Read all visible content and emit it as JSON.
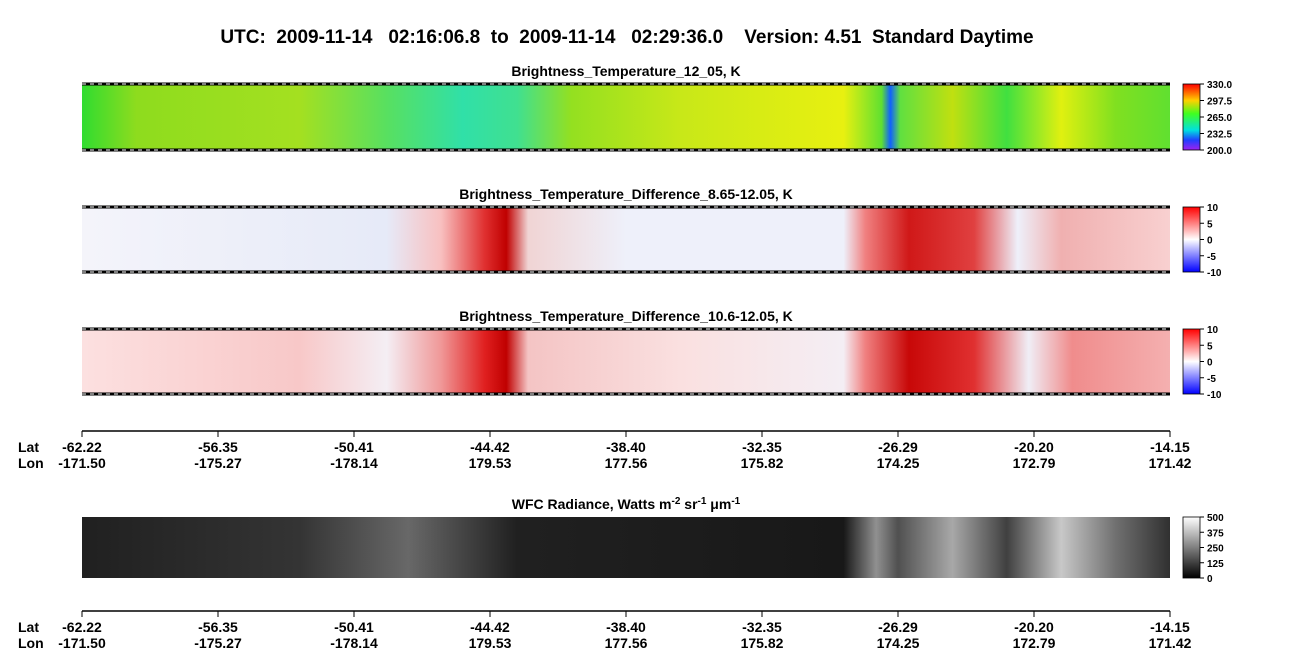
{
  "title": "UTC:  2009-11-14   02:16:06.8  to  2009-11-14   02:29:36.0    Version: 4.51  Standard Daytime",
  "panels": [
    {
      "title": [
        "Brightness_Temperature_12_05, K"
      ],
      "colorbar_ticks": [
        "330.0",
        "297.5",
        "265.0",
        "232.5",
        "200.0"
      ]
    },
    {
      "title": [
        "Brightness_Temperature_Difference_8.65-12.05, K"
      ],
      "colorbar_ticks": [
        "10",
        "5",
        "0",
        "-5",
        "-10"
      ]
    },
    {
      "title": [
        "Brightness_Temperature_Difference_10.6-12.05, K"
      ],
      "colorbar_ticks": [
        "10",
        "5",
        "0",
        "-5",
        "-10"
      ]
    },
    {
      "title": [
        "WFC Radiance, Watts m",
        "-2",
        " sr",
        "-1",
        " μm",
        "-1"
      ],
      "colorbar_ticks": [
        "500",
        "375",
        "250",
        "125",
        "0"
      ]
    }
  ],
  "axes": [
    {
      "lat_label": "Lat",
      "lon_label": "Lon",
      "lat": [
        "-62.22",
        "-56.35",
        "-50.41",
        "-44.42",
        "-38.40",
        "-32.35",
        "-26.29",
        "-20.20",
        "-14.15"
      ],
      "lon": [
        "-171.50",
        "-175.27",
        "-178.14",
        "179.53",
        "177.56",
        "175.82",
        "174.25",
        "172.79",
        "171.42"
      ]
    },
    {
      "lat_label": "Lat",
      "lon_label": "Lon",
      "lat": [
        "-62.22",
        "-56.35",
        "-50.41",
        "-44.42",
        "-38.40",
        "-32.35",
        "-26.29",
        "-20.20",
        "-14.15"
      ],
      "lon": [
        "-171.50",
        "-175.27",
        "-178.14",
        "179.53",
        "177.56",
        "175.82",
        "174.25",
        "172.79",
        "171.42"
      ]
    }
  ]
}
